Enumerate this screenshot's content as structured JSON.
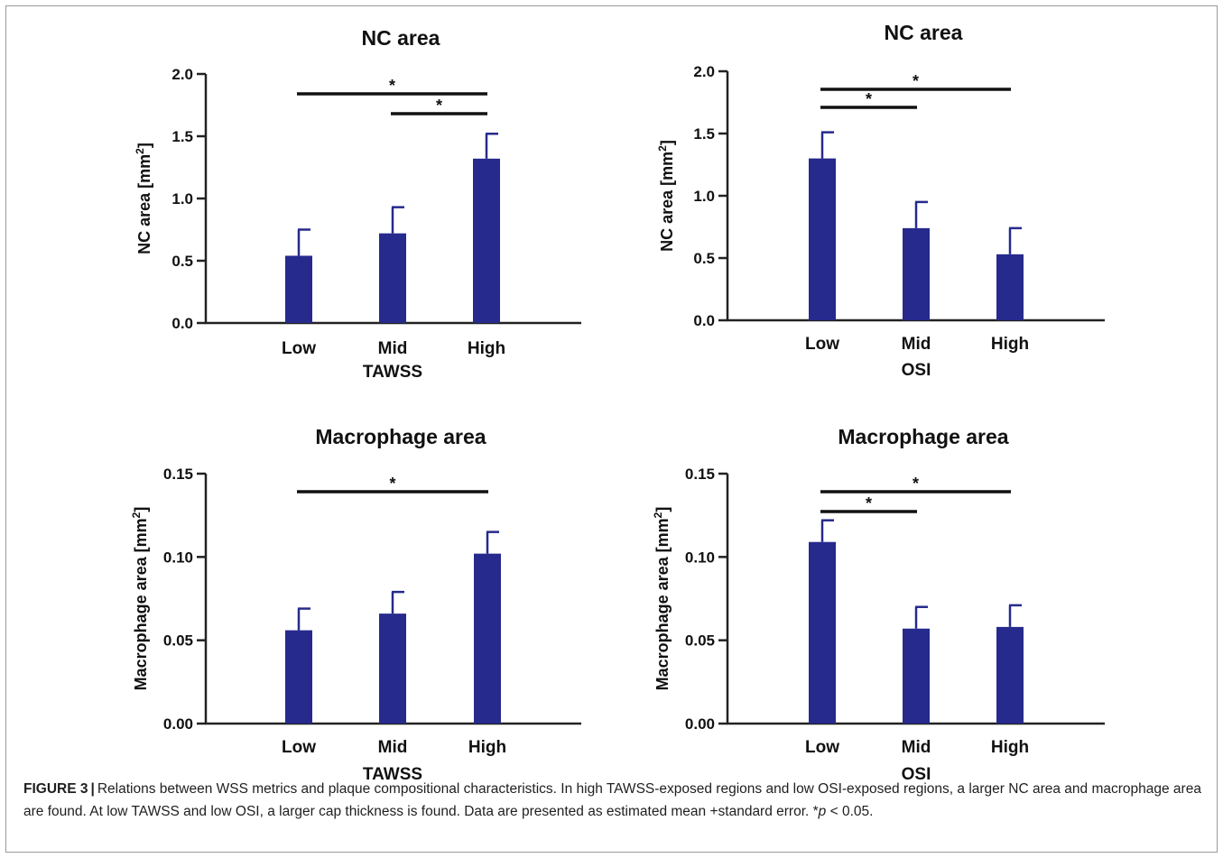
{
  "chart_data": [
    {
      "type": "bar",
      "title": "NC area",
      "ylabel": "NC area [mm²]",
      "ylabel_base": "NC area [mm",
      "ylabel_sup": "2",
      "ylabel_end": "]",
      "xlabel": "TAWSS",
      "categories": [
        "Low",
        "Mid",
        "High"
      ],
      "values": [
        0.54,
        0.72,
        1.32
      ],
      "errors": [
        0.21,
        0.21,
        0.2
      ],
      "ylim": [
        0,
        2.0
      ],
      "yticks": [
        0.0,
        0.5,
        1.0,
        1.5,
        2.0
      ],
      "ytick_labels": [
        "0.0",
        "0.5",
        "1.0",
        "1.5",
        "2.0"
      ],
      "significance": [
        {
          "from": "Low",
          "to": "High",
          "label": "*"
        },
        {
          "from": "Mid",
          "to": "High",
          "label": "*"
        }
      ],
      "bar_color": "#262a8c"
    },
    {
      "type": "bar",
      "title": "NC area",
      "ylabel": "NC area [mm²]",
      "ylabel_base": "NC area [mm",
      "ylabel_sup": "2",
      "ylabel_end": "]",
      "xlabel": "OSI",
      "categories": [
        "Low",
        "Mid",
        "High"
      ],
      "values": [
        1.3,
        0.74,
        0.53
      ],
      "errors": [
        0.21,
        0.21,
        0.21
      ],
      "ylim": [
        0,
        2.0
      ],
      "yticks": [
        0.0,
        0.5,
        1.0,
        1.5,
        2.0
      ],
      "ytick_labels": [
        "0.0",
        "0.5",
        "1.0",
        "1.5",
        "2.0"
      ],
      "significance": [
        {
          "from": "Low",
          "to": "High",
          "label": "*"
        },
        {
          "from": "Low",
          "to": "Mid",
          "label": "*"
        }
      ],
      "bar_color": "#262a8c"
    },
    {
      "type": "bar",
      "title": "Macrophage area",
      "ylabel": "Macrophage area [mm²]",
      "ylabel_base": "Macrophage area [mm",
      "ylabel_sup": "2",
      "ylabel_end": "]",
      "xlabel": "TAWSS",
      "categories": [
        "Low",
        "Mid",
        "High"
      ],
      "values": [
        0.056,
        0.066,
        0.102
      ],
      "errors": [
        0.013,
        0.013,
        0.013
      ],
      "ylim": [
        0,
        0.15
      ],
      "yticks": [
        0.0,
        0.05,
        0.1,
        0.15
      ],
      "ytick_labels": [
        "0.00",
        "0.05",
        "0.10",
        "0.15"
      ],
      "significance": [
        {
          "from": "Low",
          "to": "High",
          "label": "*"
        }
      ],
      "bar_color": "#262a8c"
    },
    {
      "type": "bar",
      "title": "Macrophage area",
      "ylabel": "Macrophage area [mm²]",
      "ylabel_base": "Macrophage area [mm",
      "ylabel_sup": "2",
      "ylabel_end": "]",
      "xlabel": "OSI",
      "categories": [
        "Low",
        "Mid",
        "High"
      ],
      "values": [
        0.109,
        0.057,
        0.058
      ],
      "errors": [
        0.013,
        0.013,
        0.013
      ],
      "ylim": [
        0,
        0.15
      ],
      "yticks": [
        0.0,
        0.05,
        0.1,
        0.15
      ],
      "ytick_labels": [
        "0.00",
        "0.05",
        "0.10",
        "0.15"
      ],
      "significance": [
        {
          "from": "Low",
          "to": "High",
          "label": "*"
        },
        {
          "from": "Low",
          "to": "Mid",
          "label": "*"
        }
      ],
      "bar_color": "#262a8c"
    }
  ],
  "caption": {
    "label": "FIGURE 3",
    "separator": "|",
    "text_1": "Relations between WSS metrics and plaque compositional characteristics. In high TAWSS-exposed regions and low OSI-exposed regions, a larger NC area and macrophage area are found. At low TAWSS and low OSI, a larger cap thickness is found. Data are presented as estimated mean +standard error. *",
    "p_symbol": "p",
    "text_2": " < 0.05."
  }
}
